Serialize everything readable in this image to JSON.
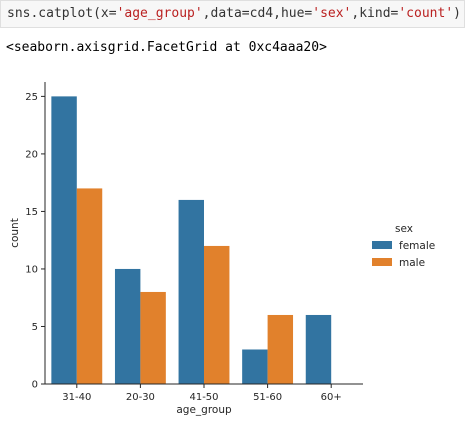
{
  "cell": {
    "code_prefix": "sns.catplot(x=",
    "code_arg1": "'age_group'",
    "code_mid1": ",data=cd4,hue=",
    "code_arg2": "'sex'",
    "code_mid2": ",kind=",
    "code_arg3": "'count'",
    "code_suffix": ")",
    "output": "<seaborn.axisgrid.FacetGrid at 0xc4aaa20>"
  },
  "chart_data": {
    "type": "bar",
    "categories": [
      "31-40",
      "20-30",
      "41-50",
      "51-60",
      "60+"
    ],
    "series": [
      {
        "name": "female",
        "values": [
          25,
          10,
          16,
          3,
          6
        ],
        "color": "#3274a1"
      },
      {
        "name": "male",
        "values": [
          17,
          8,
          12,
          6,
          0
        ],
        "color": "#e1812c"
      }
    ],
    "xlabel": "age_group",
    "ylabel": "count",
    "ylim": [
      0,
      26.25
    ],
    "yticks": [
      0,
      5,
      10,
      15,
      20,
      25
    ],
    "legend_title": "sex",
    "legend_position": "right",
    "grid": false
  }
}
